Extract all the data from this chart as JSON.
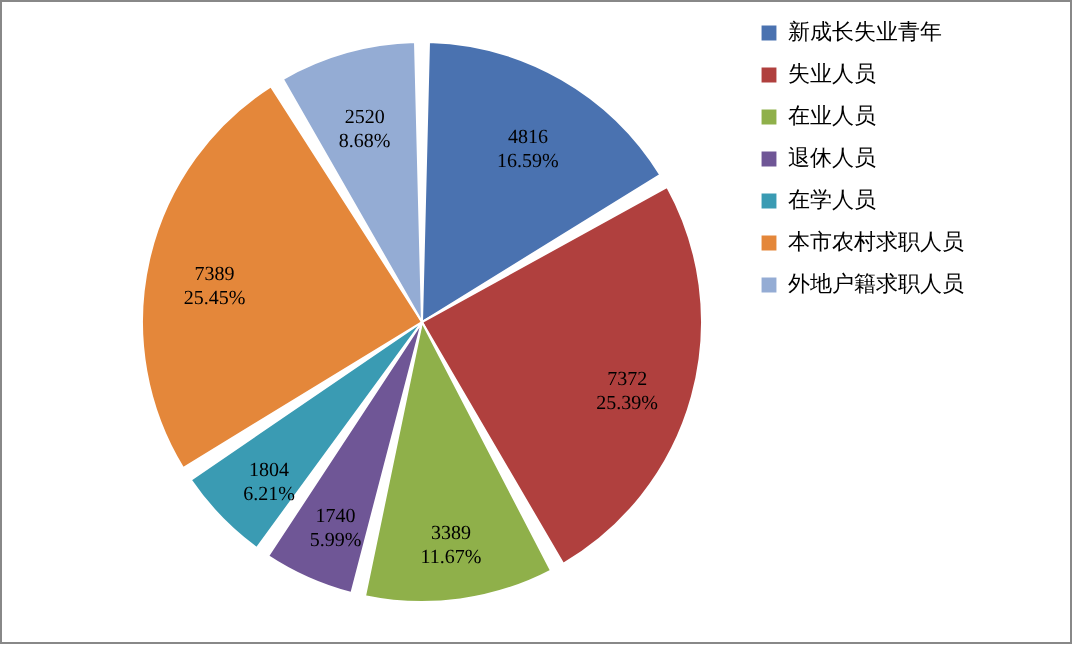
{
  "chart_data": {
    "type": "pie",
    "categories": [
      "新成长失业青年",
      "失业人员",
      "在业人员",
      "退休人员",
      "在学人员",
      "本市农村求职人员",
      "外地户籍求职人员"
    ],
    "values": [
      4816,
      7372,
      3389,
      1740,
      1804,
      7389,
      2520
    ],
    "value_labels": [
      "4816\n16.59%",
      "7372\n25.39%",
      "3389\n11.67%",
      "1740\n5.99%",
      "1804\n6.21%",
      "7389\n25.45%",
      "2520\n8.68%"
    ],
    "colors": [
      "#4a72b0",
      "#b0403e",
      "#8fb04a",
      "#6f5696",
      "#3a9bb3",
      "#e4873a",
      "#94acd4"
    ],
    "legend": "right"
  }
}
